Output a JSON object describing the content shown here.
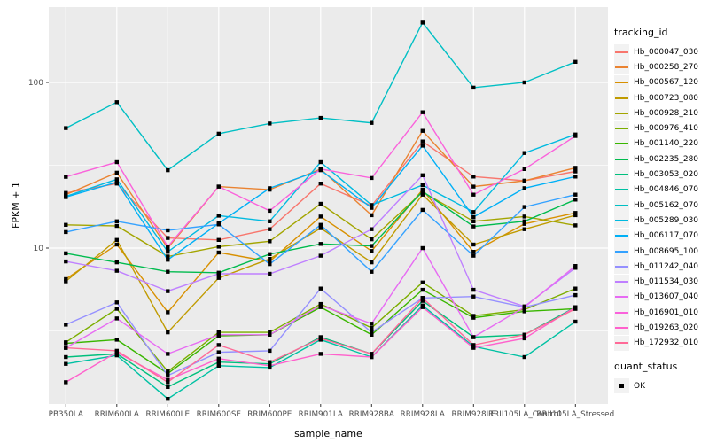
{
  "chart_data": {
    "type": "line",
    "title": "",
    "x_axis": {
      "label": "sample_name",
      "categories": [
        "PB350LA",
        "RRIM600LA",
        "RRIM600LE",
        "RRIM600SE",
        "RRIM600PE",
        "RRIM901LA",
        "RRIM928BA",
        "RRIM928LA",
        "RRIM928LE",
        "RRII105LA_Control",
        "RRII105LA_Stressed"
      ]
    },
    "y_axis": {
      "label": "FPKM + 1",
      "scale": "log10",
      "ticks": [
        100,
        10
      ],
      "tick_labels": [
        "100",
        "10"
      ],
      "minor_gridlines": [
        31.6,
        3.16
      ],
      "range": [
        1.05,
        290
      ]
    },
    "legend": {
      "tracking_title": "tracking_id",
      "quant_title": "quant_status",
      "quant_items": [
        {
          "label": "OK",
          "symbol": "filled-square"
        }
      ],
      "position": "right"
    },
    "grid": "on",
    "colors": {
      "panel_bg": "#EBEBEB",
      "gridline": "#FFFFFF",
      "tick_text": "#4D4D4D",
      "axis_text": "#000000",
      "legend_key_bg": "#F2F2F2",
      "point": "#000000"
    },
    "series": [
      {
        "tracking_id": "Hb_000047_030",
        "color": "#F8766D",
        "values": [
          21.5,
          24.5,
          11.5,
          11.2,
          13.0,
          24.5,
          18.0,
          44,
          27,
          25.5,
          29
        ]
      },
      {
        "tracking_id": "Hb_000258_270",
        "color": "#EA8331",
        "values": [
          21.0,
          28.5,
          10.0,
          23.5,
          22.5,
          30,
          15.8,
          51,
          23.5,
          25.5,
          30.5
        ]
      },
      {
        "tracking_id": "Hb_000567_120",
        "color": "#D89000",
        "values": [
          6.5,
          10.5,
          4.1,
          9.4,
          8.3,
          15.5,
          9.6,
          22.5,
          9.5,
          14.0,
          16.3
        ]
      },
      {
        "tracking_id": "Hb_000723_080",
        "color": "#C09B00",
        "values": [
          6.3,
          11.2,
          3.1,
          6.6,
          8.6,
          13.2,
          8.2,
          21.0,
          10.5,
          13.0,
          15.8
        ]
      },
      {
        "tracking_id": "Hb_000928_210",
        "color": "#A3A500",
        "values": [
          13.8,
          13.6,
          8.9,
          10.2,
          11.0,
          18.5,
          11.3,
          21.8,
          14.5,
          15.5,
          13.7
        ]
      },
      {
        "tracking_id": "Hb_000976_410",
        "color": "#7CAE00",
        "values": [
          2.7,
          4.3,
          1.8,
          3.1,
          3.1,
          4.6,
          3.3,
          6.2,
          3.9,
          4.25,
          5.7
        ]
      },
      {
        "tracking_id": "Hb_001140_220",
        "color": "#39B600",
        "values": [
          2.66,
          2.8,
          1.75,
          2.95,
          3.0,
          4.4,
          3.0,
          5.6,
          3.8,
          4.15,
          4.3
        ]
      },
      {
        "tracking_id": "Hb_002235_280",
        "color": "#00BB4E",
        "values": [
          9.3,
          8.2,
          7.2,
          7.1,
          9.2,
          10.6,
          10.3,
          22.0,
          13.5,
          14.5,
          19.6
        ]
      },
      {
        "tracking_id": "Hb_003053_020",
        "color": "#00BF7D",
        "values": [
          2.2,
          2.3,
          1.45,
          2.05,
          2.0,
          2.9,
          2.3,
          4.8,
          2.9,
          3.0,
          4.4
        ]
      },
      {
        "tracking_id": "Hb_004846_070",
        "color": "#00C1A3",
        "values": [
          2.0,
          2.25,
          1.23,
          1.95,
          1.9,
          2.8,
          2.2,
          4.5,
          2.55,
          2.2,
          3.6
        ]
      },
      {
        "tracking_id": "Hb_005162_070",
        "color": "#00BFC4",
        "values": [
          53,
          76,
          29.5,
          49,
          56.5,
          61,
          57,
          230,
          93,
          100,
          133
        ]
      },
      {
        "tracking_id": "Hb_005289_030",
        "color": "#00BAE0",
        "values": [
          20.5,
          26.0,
          9.5,
          15.7,
          14.5,
          33.0,
          18.2,
          24.0,
          16.5,
          37.5,
          48.5
        ]
      },
      {
        "tracking_id": "Hb_006117_070",
        "color": "#00B0F6",
        "values": [
          20.3,
          25.0,
          8.5,
          14.1,
          23.0,
          29.5,
          17.5,
          41.5,
          15.4,
          23.0,
          27.0
        ]
      },
      {
        "tracking_id": "Hb_008695_100",
        "color": "#35A2FF",
        "values": [
          12.5,
          14.5,
          12.8,
          13.9,
          8.0,
          13.8,
          7.2,
          17.0,
          9.0,
          17.7,
          21.0
        ]
      },
      {
        "tracking_id": "Hb_011242_040",
        "color": "#9590FF",
        "values": [
          3.45,
          4.7,
          1.7,
          2.35,
          2.4,
          5.7,
          3.1,
          5.0,
          5.1,
          4.4,
          5.2
        ]
      },
      {
        "tracking_id": "Hb_011534_030",
        "color": "#BF80FF",
        "values": [
          8.3,
          7.3,
          5.5,
          7.0,
          7.0,
          9.0,
          13.0,
          27.5,
          5.6,
          4.45,
          7.6
        ]
      },
      {
        "tracking_id": "Hb_013607_040",
        "color": "#E76BF3",
        "values": [
          2.5,
          3.76,
          2.3,
          3.0,
          3.0,
          4.5,
          3.5,
          10.0,
          2.9,
          4.4,
          7.8
        ]
      },
      {
        "tracking_id": "Hb_016901_010",
        "color": "#FA62DB",
        "values": [
          26.9,
          33.0,
          10.2,
          23.5,
          16.8,
          30.0,
          26.5,
          66,
          21.0,
          30.0,
          47.5
        ]
      },
      {
        "tracking_id": "Hb_019263_020",
        "color": "#FF61CC",
        "values": [
          1.55,
          2.35,
          1.6,
          2.15,
          1.95,
          2.3,
          2.2,
          4.4,
          2.5,
          2.85,
          4.4
        ]
      },
      {
        "tracking_id": "Hb_172932_010",
        "color": "#FF6A98",
        "values": [
          2.5,
          2.4,
          1.55,
          2.6,
          2.05,
          2.85,
          2.3,
          5.0,
          2.6,
          3.0,
          4.3
        ]
      }
    ]
  }
}
